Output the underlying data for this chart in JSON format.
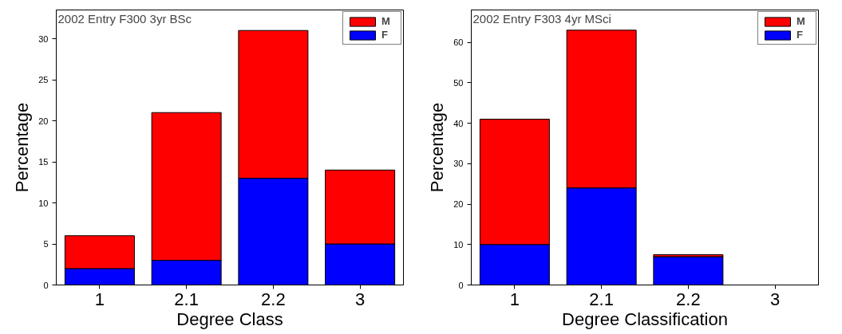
{
  "chart_data": [
    {
      "type": "bar",
      "stacked": true,
      "title": "2002 Entry F300 3yr BSc",
      "xlabel": "Degree Class",
      "ylabel": "Percentage",
      "categories": [
        "1",
        "2.1",
        "2.2",
        "3"
      ],
      "series": [
        {
          "name": "F",
          "color": "#0000ff",
          "values": [
            2,
            3,
            13,
            5
          ]
        },
        {
          "name": "M",
          "color": "#ff0000",
          "values": [
            4,
            18,
            18,
            9
          ]
        }
      ],
      "ylim": [
        0,
        33.5
      ],
      "yticks": [
        0,
        5,
        10,
        15,
        20,
        25,
        30
      ],
      "grid": false,
      "legend": "top right"
    },
    {
      "type": "bar",
      "stacked": true,
      "title": "2002 Entry F303 4yr MSci",
      "xlabel": "Degree Classification",
      "ylabel": "Percentage",
      "categories": [
        "1",
        "2.1",
        "2.2",
        "3"
      ],
      "series": [
        {
          "name": "F",
          "color": "#0000ff",
          "values": [
            10,
            24,
            7,
            0
          ]
        },
        {
          "name": "M",
          "color": "#ff0000",
          "values": [
            31,
            39,
            0.5,
            0
          ]
        }
      ],
      "ylim": [
        0,
        68
      ],
      "yticks": [
        0,
        10,
        20,
        30,
        40,
        50,
        60
      ],
      "grid": false,
      "legend": "top right"
    }
  ]
}
